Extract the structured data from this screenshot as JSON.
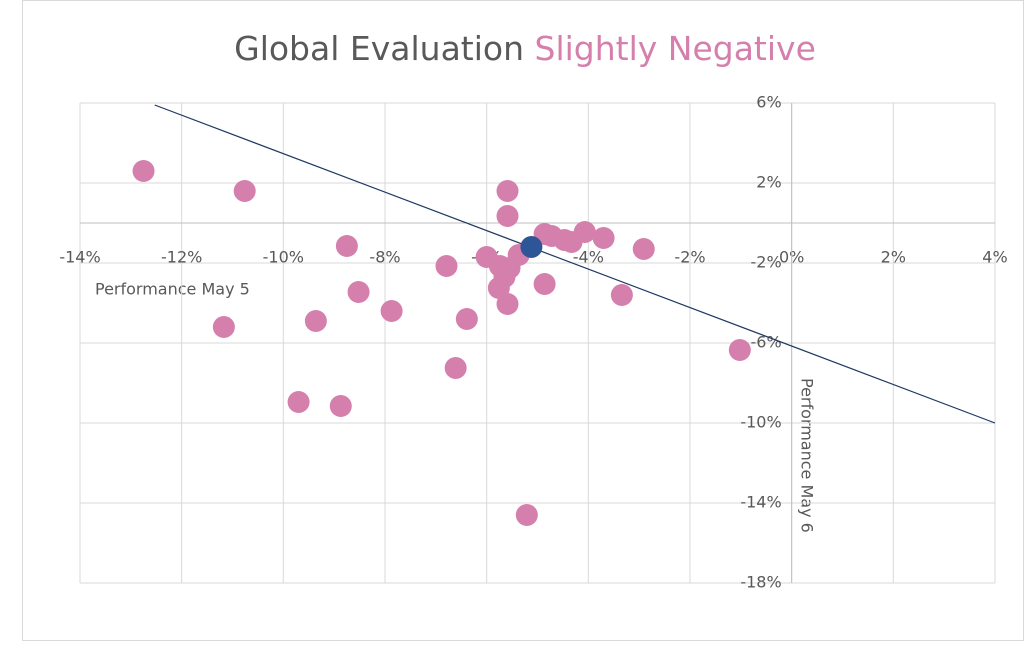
{
  "chart_data": {
    "type": "scatter",
    "title": "Global Evaluation ",
    "subtitle": "Slightly Negative",
    "xlabel": "Performance May 5",
    "ylabel": "Performance May 6",
    "xlim": [
      -14,
      4
    ],
    "ylim": [
      -18,
      6
    ],
    "xticks": [
      {
        "value": -14,
        "label": "-14%"
      },
      {
        "value": -12,
        "label": "-12%"
      },
      {
        "value": -10,
        "label": "-10%"
      },
      {
        "value": -8,
        "label": "-8%"
      },
      {
        "value": -6,
        "label": "-6%"
      },
      {
        "value": -4,
        "label": "-4%"
      },
      {
        "value": -2,
        "label": "-2%"
      },
      {
        "value": 0,
        "label": "0%"
      },
      {
        "value": 2,
        "label": "2%"
      },
      {
        "value": 4,
        "label": "4%"
      }
    ],
    "yticks": [
      {
        "value": 6,
        "label": "6%"
      },
      {
        "value": 2,
        "label": "2%"
      },
      {
        "value": -2,
        "label": "-2%"
      },
      {
        "value": -6,
        "label": "-6%"
      },
      {
        "value": -10,
        "label": "-10%"
      },
      {
        "value": -14,
        "label": "-14%"
      },
      {
        "value": -18,
        "label": "-18%"
      }
    ],
    "grid": true,
    "series": [
      {
        "color": "#d580ac",
        "x": [
          -12.75,
          -10.76,
          -5.59,
          -5.59,
          -8.75,
          -4.86,
          -4.72,
          -4.47,
          -4.33,
          -4.07,
          -3.7,
          -2.91,
          -5.37,
          -6.0,
          -6.79,
          -5.74,
          -5.55,
          -5.65,
          -5.76,
          -8.52,
          -4.86,
          -3.34,
          -5.59,
          -7.87,
          -6.39,
          -9.36,
          -11.17,
          -1.02,
          -6.61,
          -9.7,
          -8.87,
          -5.21
        ],
        "values": [
          2.6,
          1.6,
          1.6,
          0.35,
          -1.15,
          -0.55,
          -0.65,
          -0.85,
          -0.95,
          -0.45,
          -0.75,
          -1.3,
          -1.6,
          -1.7,
          -2.15,
          -2.15,
          -2.25,
          -2.7,
          -3.25,
          -3.45,
          -3.05,
          -3.6,
          -4.05,
          -4.4,
          -4.8,
          -4.9,
          -5.2,
          -6.35,
          -7.25,
          -8.95,
          -9.15,
          -14.6
        ]
      },
      {
        "color": "#2e5597",
        "x": [
          -5.12
        ],
        "values": [
          -1.2
        ]
      }
    ],
    "trendline": {
      "color": "#203864",
      "x": [
        -12.53,
        4
      ],
      "values": [
        5.9,
        -10
      ]
    }
  }
}
